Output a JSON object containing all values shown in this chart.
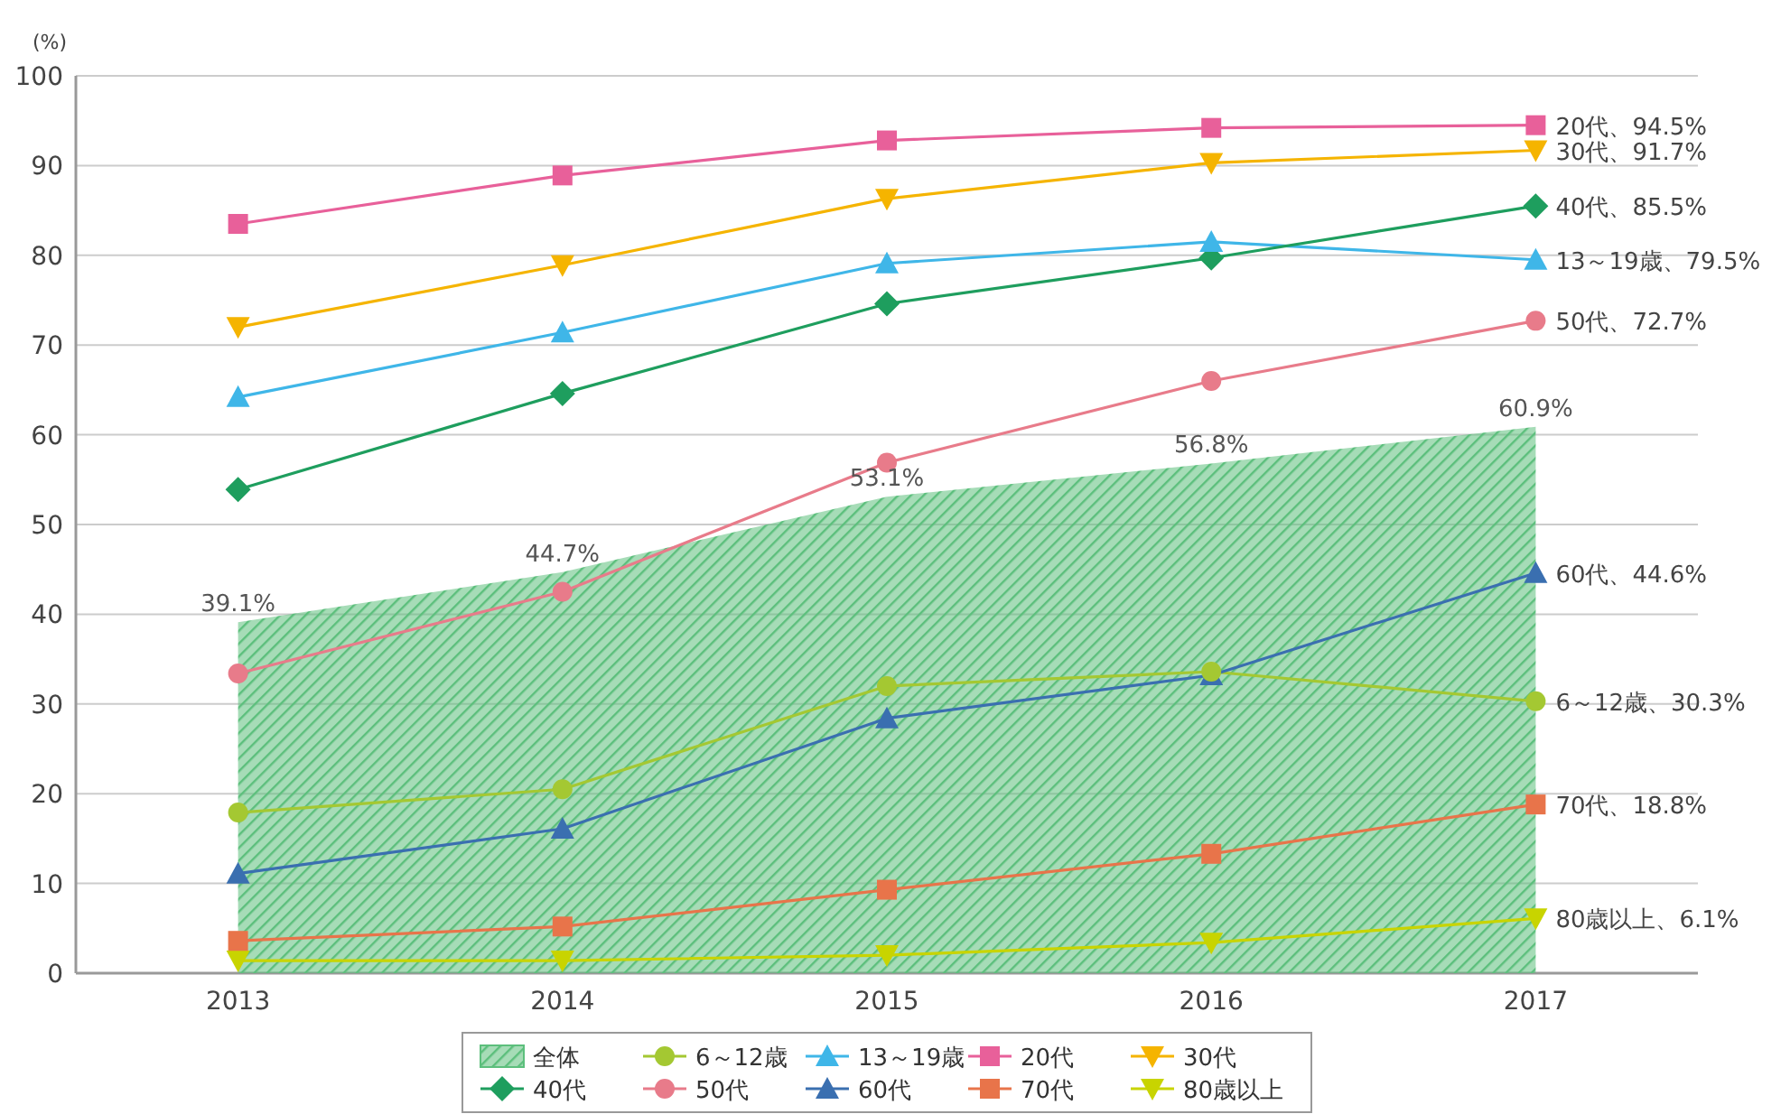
{
  "chart_data": {
    "type": "line",
    "ylabel": "(%)",
    "categories": [
      "2013",
      "2014",
      "2015",
      "2016",
      "2017"
    ],
    "ylim": [
      0,
      100
    ],
    "yticks": [
      0,
      10,
      20,
      30,
      40,
      50,
      60,
      70,
      80,
      90,
      100
    ],
    "grid": "y",
    "legend": "bottom",
    "series": [
      {
        "name": "全体",
        "type": "area",
        "color": "#5cbf7c",
        "values": [
          39.1,
          44.7,
          53.1,
          56.8,
          60.9
        ],
        "value_labels": [
          "39.1%",
          "44.7%",
          "53.1%",
          "56.8%",
          "60.9%"
        ]
      },
      {
        "name": "6～12歳",
        "color": "#a4c832",
        "marker": "circle",
        "values": [
          17.9,
          20.5,
          32.0,
          33.6,
          30.3
        ],
        "value_labels": [
          null,
          null,
          null,
          null,
          "6～12歳、30.3%"
        ]
      },
      {
        "name": "13～19歳",
        "color": "#3fb6e8",
        "marker": "triangle",
        "values": [
          64.2,
          71.4,
          79.1,
          81.5,
          79.5
        ],
        "value_labels": [
          null,
          null,
          null,
          null,
          "13～19歳、79.5%"
        ]
      },
      {
        "name": "20代",
        "color": "#e8609a",
        "marker": "square",
        "values": [
          83.5,
          88.9,
          92.8,
          94.2,
          94.5
        ],
        "value_labels": [
          null,
          null,
          null,
          null,
          "20代、94.5%"
        ]
      },
      {
        "name": "30代",
        "color": "#f5b400",
        "marker": "triangle-down",
        "values": [
          72.0,
          78.9,
          86.3,
          90.3,
          91.7
        ],
        "value_labels": [
          null,
          null,
          null,
          null,
          "30代、91.7%"
        ]
      },
      {
        "name": "40代",
        "color": "#1e9e5e",
        "marker": "diamond",
        "values": [
          53.9,
          64.6,
          74.6,
          79.7,
          85.5
        ],
        "value_labels": [
          null,
          null,
          null,
          null,
          "40代、85.5%"
        ]
      },
      {
        "name": "50代",
        "color": "#e87b8a",
        "marker": "circle",
        "values": [
          33.4,
          42.5,
          56.9,
          66.0,
          72.7
        ],
        "value_labels": [
          null,
          null,
          null,
          null,
          "50代、72.7%"
        ]
      },
      {
        "name": "60代",
        "color": "#3a6fb0",
        "marker": "triangle",
        "values": [
          11.1,
          16.1,
          28.4,
          33.2,
          44.6
        ],
        "value_labels": [
          null,
          null,
          null,
          null,
          "60代、44.6%"
        ]
      },
      {
        "name": "70代",
        "color": "#e8744a",
        "marker": "square",
        "values": [
          3.6,
          5.2,
          9.3,
          13.3,
          18.8
        ],
        "value_labels": [
          null,
          null,
          null,
          null,
          "70代、18.8%"
        ]
      },
      {
        "name": "80歳以上",
        "color": "#c8d400",
        "marker": "triangle-down",
        "values": [
          1.4,
          1.4,
          2.0,
          3.4,
          6.1
        ],
        "value_labels": [
          null,
          null,
          null,
          null,
          "80歳以上、6.1%"
        ]
      }
    ]
  }
}
